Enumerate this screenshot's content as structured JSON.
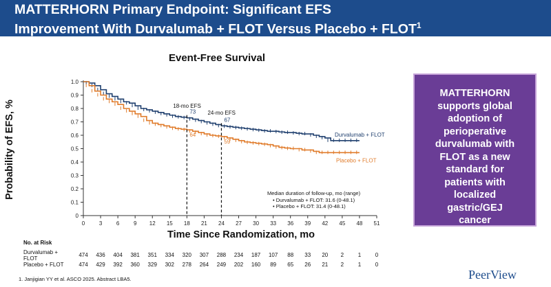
{
  "header": {
    "line1": "MATTERHORN Primary Endpoint: Significant EFS",
    "line2": "Improvement With Durvalumab + FLOT Versus Placebo + FLOT",
    "line2_sup": "1"
  },
  "callout": {
    "lines": [
      "MATTERHORN",
      "supports global",
      "adoption of",
      "perioperative",
      "durvalumab with",
      "FLOT as a new",
      "standard for",
      "patients with",
      "localized",
      "gastric/GEJ",
      "cancer"
    ],
    "bg_color": "#6a3d96"
  },
  "risk_table": {
    "header": "No. at Risk",
    "rows": [
      {
        "label": "Durvalumab + FLOT",
        "values": [
          "474",
          "436",
          "404",
          "381",
          "351",
          "334",
          "320",
          "307",
          "288",
          "234",
          "187",
          "107",
          "88",
          "33",
          "20",
          "2",
          "1",
          "0"
        ]
      },
      {
        "label": "Placebo + FLOT",
        "values": [
          "474",
          "429",
          "392",
          "360",
          "329",
          "302",
          "278",
          "264",
          "249",
          "202",
          "160",
          "89",
          "65",
          "26",
          "21",
          "2",
          "1",
          "0"
        ]
      }
    ]
  },
  "footnote": "1. Janjigian YY et al. ASCO 2025. Abstract LBA5.",
  "logo": "PeerView",
  "chart_data": {
    "type": "line",
    "title": "Event-Free Survival",
    "xlabel": "Time Since Randomization, mo",
    "ylabel": "Probability of EFS, %",
    "xlim": [
      0,
      51
    ],
    "ylim": [
      0,
      1.0
    ],
    "x_ticks": [
      "0",
      "3",
      "6",
      "9",
      "12",
      "15",
      "18",
      "21",
      "24",
      "27",
      "30",
      "33",
      "36",
      "39",
      "42",
      "45",
      "48",
      "51"
    ],
    "y_ticks": [
      "0",
      "0.1",
      "0.2",
      "0.3",
      "0.4",
      "0.5",
      "0.6",
      "0.7",
      "0.8",
      "0.9",
      "1.0"
    ],
    "series": [
      {
        "name": "Durvalumab + FLOT",
        "color": "#1f3f6e",
        "x": [
          0,
          1,
          2,
          3,
          4,
          5,
          6,
          7,
          8,
          9,
          10,
          11,
          12,
          13,
          14,
          15,
          16,
          17,
          18,
          19,
          20,
          21,
          22,
          23,
          24,
          25,
          26,
          27,
          28,
          29,
          30,
          31,
          32,
          33,
          34,
          35,
          36,
          37,
          38,
          39,
          40,
          41,
          42,
          43,
          44,
          45,
          46,
          47,
          48
        ],
        "y": [
          1.0,
          0.99,
          0.97,
          0.94,
          0.91,
          0.89,
          0.87,
          0.85,
          0.84,
          0.82,
          0.8,
          0.79,
          0.78,
          0.77,
          0.76,
          0.75,
          0.74,
          0.735,
          0.73,
          0.72,
          0.71,
          0.7,
          0.69,
          0.68,
          0.67,
          0.665,
          0.66,
          0.655,
          0.65,
          0.645,
          0.64,
          0.635,
          0.63,
          0.63,
          0.625,
          0.62,
          0.62,
          0.615,
          0.61,
          0.61,
          0.6,
          0.59,
          0.58,
          0.56,
          0.56,
          0.56,
          0.56,
          0.56,
          0.56
        ]
      },
      {
        "name": "Placebo + FLOT",
        "color": "#e07b2a",
        "x": [
          0,
          1,
          2,
          3,
          4,
          5,
          6,
          7,
          8,
          9,
          10,
          11,
          12,
          13,
          14,
          15,
          16,
          17,
          18,
          19,
          20,
          21,
          22,
          23,
          24,
          25,
          26,
          27,
          28,
          29,
          30,
          31,
          32,
          33,
          34,
          35,
          36,
          37,
          38,
          39,
          40,
          41,
          42,
          43,
          44,
          45,
          46,
          47,
          48
        ],
        "y": [
          1.0,
          0.97,
          0.93,
          0.9,
          0.87,
          0.85,
          0.83,
          0.8,
          0.78,
          0.76,
          0.74,
          0.71,
          0.69,
          0.68,
          0.67,
          0.66,
          0.65,
          0.645,
          0.64,
          0.63,
          0.62,
          0.61,
          0.6,
          0.595,
          0.59,
          0.58,
          0.57,
          0.56,
          0.55,
          0.545,
          0.54,
          0.535,
          0.53,
          0.52,
          0.51,
          0.505,
          0.5,
          0.5,
          0.49,
          0.49,
          0.48,
          0.47,
          0.47,
          0.47,
          0.47,
          0.47,
          0.47,
          0.47,
          0.47
        ]
      }
    ],
    "series_labels": [
      "Durvalumab + FLOT",
      "Placebo + FLOT"
    ],
    "annotations": [
      {
        "text": "18-mo EFS",
        "x": 18
      },
      {
        "text": "24-mo EFS",
        "x": 24
      },
      {
        "text": "73",
        "series": "Durvalumab + FLOT",
        "x": 18,
        "y": 0.73
      },
      {
        "text": "67",
        "series": "Durvalumab + FLOT",
        "x": 24,
        "y": 0.67
      },
      {
        "text": "64",
        "series": "Placebo + FLOT",
        "x": 18,
        "y": 0.64
      },
      {
        "text": "59",
        "series": "Placebo + FLOT",
        "x": 24,
        "y": 0.59
      }
    ],
    "followup": {
      "title": "Median duration of follow-up, mo (range)",
      "items": [
        "Durvalumab + FLOT: 31.6 (0-48.1)",
        "Placebo + FLOT: 31.4 (0-48.1)"
      ]
    },
    "grid": false
  }
}
